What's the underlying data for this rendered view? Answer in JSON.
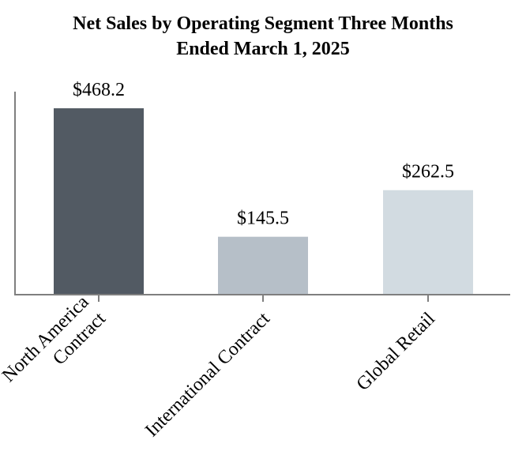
{
  "chart_data": {
    "type": "bar",
    "title_line1": "Net Sales by Operating Segment Three Months",
    "title_line2": "Ended March 1, 2025",
    "categories": [
      {
        "lines": [
          "North America",
          "Contract"
        ]
      },
      {
        "lines": [
          "International Contract"
        ]
      },
      {
        "lines": [
          "Global Retail"
        ]
      }
    ],
    "values": [
      468.2,
      145.5,
      262.5
    ],
    "data_labels": [
      "$468.2",
      "$145.5",
      "$262.5"
    ],
    "colors": [
      "#525a63",
      "#b6bfc8",
      "#d2dbe1"
    ],
    "ylim": [
      0,
      510
    ],
    "xlabel": "",
    "ylabel": "",
    "grid": false
  }
}
